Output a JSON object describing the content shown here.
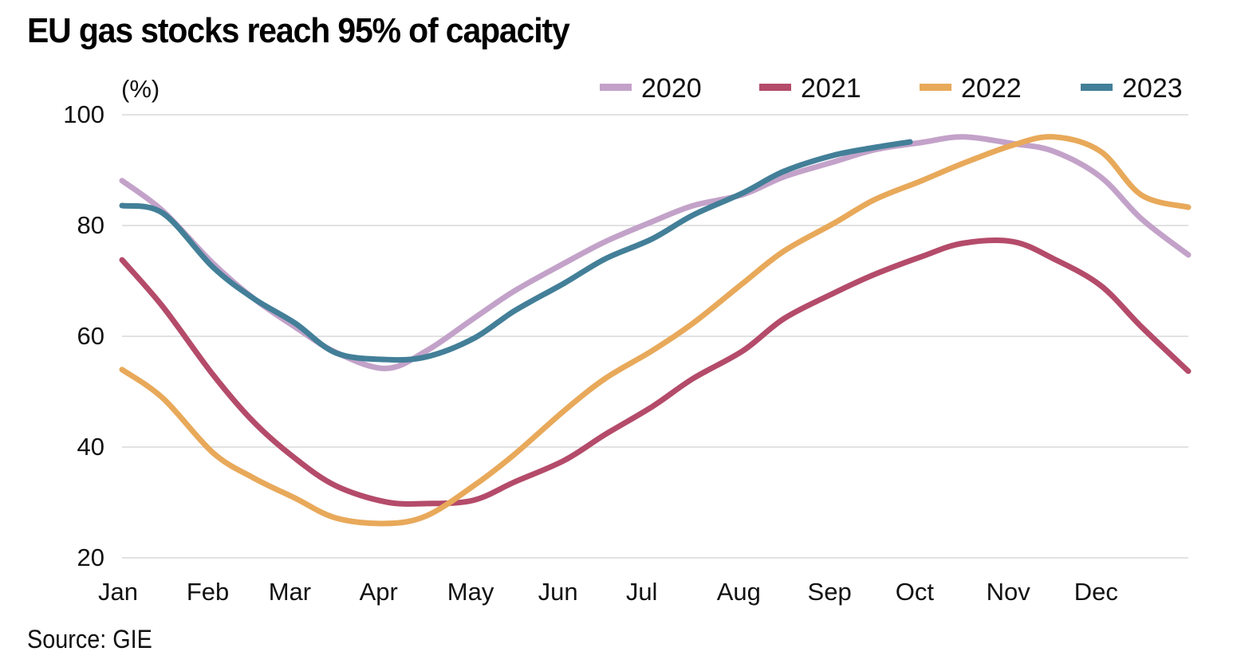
{
  "chart_data": {
    "type": "line",
    "title": "EU gas stocks reach 95% of capacity",
    "ylabel": "(%)",
    "xlabel": "",
    "source": "Source: GIE",
    "ylim": [
      20,
      100
    ],
    "yticks": [
      100,
      80,
      60,
      40,
      20
    ],
    "xlim_day_of_year": [
      1,
      365
    ],
    "xticks": [
      {
        "label": "Jan",
        "day": 1
      },
      {
        "label": "Feb",
        "day": 32
      },
      {
        "label": "Mar",
        "day": 60
      },
      {
        "label": "Apr",
        "day": 91
      },
      {
        "label": "May",
        "day": 121
      },
      {
        "label": "Jun",
        "day": 152
      },
      {
        "label": "Jul",
        "day": 182
      },
      {
        "label": "Aug",
        "day": 213
      },
      {
        "label": "Sep",
        "day": 244
      },
      {
        "label": "Oct",
        "day": 274
      },
      {
        "label": "Nov",
        "day": 305
      },
      {
        "label": "Dec",
        "day": 335
      }
    ],
    "grid": true,
    "legend_position": "top-right",
    "x_day_of_year": [
      1,
      15,
      32,
      46,
      60,
      74,
      91,
      105,
      121,
      135,
      152,
      166,
      182,
      196,
      213,
      227,
      244,
      258,
      274,
      288,
      305,
      319,
      335,
      349,
      365
    ],
    "series": [
      {
        "name": "2020",
        "color": "#c3a2c9",
        "values": [
          88.1,
          82.6,
          73.2,
          66.8,
          61.7,
          57.1,
          54.2,
          57.4,
          63.2,
          68.2,
          73.2,
          77.1,
          80.7,
          83.6,
          85.6,
          88.8,
          91.5,
          93.7,
          95.0,
          96.0,
          94.8,
          93.4,
          88.8,
          81.2,
          74.7
        ]
      },
      {
        "name": "2021",
        "color": "#b44b6a",
        "values": [
          73.8,
          65.3,
          53.1,
          44.5,
          38.0,
          33.0,
          30.1,
          29.8,
          30.4,
          33.7,
          37.6,
          42.3,
          47.3,
          52.4,
          57.4,
          63.2,
          67.8,
          71.2,
          74.4,
          76.8,
          77.1,
          74.0,
          69.2,
          61.7,
          53.7
        ]
      },
      {
        "name": "2022",
        "color": "#e8a95a",
        "values": [
          54.0,
          48.8,
          39.0,
          34.4,
          30.8,
          27.2,
          26.2,
          27.6,
          33.0,
          38.7,
          46.6,
          52.4,
          57.4,
          62.4,
          69.6,
          75.4,
          80.4,
          84.7,
          88.1,
          91.2,
          94.5,
          96.0,
          93.4,
          85.5,
          83.3
        ]
      },
      {
        "name": "2023",
        "color": "#437f98",
        "values": [
          83.6,
          82.2,
          72.5,
          66.8,
          62.4,
          57.0,
          55.8,
          56.3,
          59.6,
          64.6,
          69.6,
          74.0,
          77.6,
          81.9,
          85.9,
          89.8,
          92.7,
          94.1,
          95.1,
          null,
          null,
          null,
          null,
          null,
          null
        ],
        "last_day": 270
      }
    ]
  }
}
